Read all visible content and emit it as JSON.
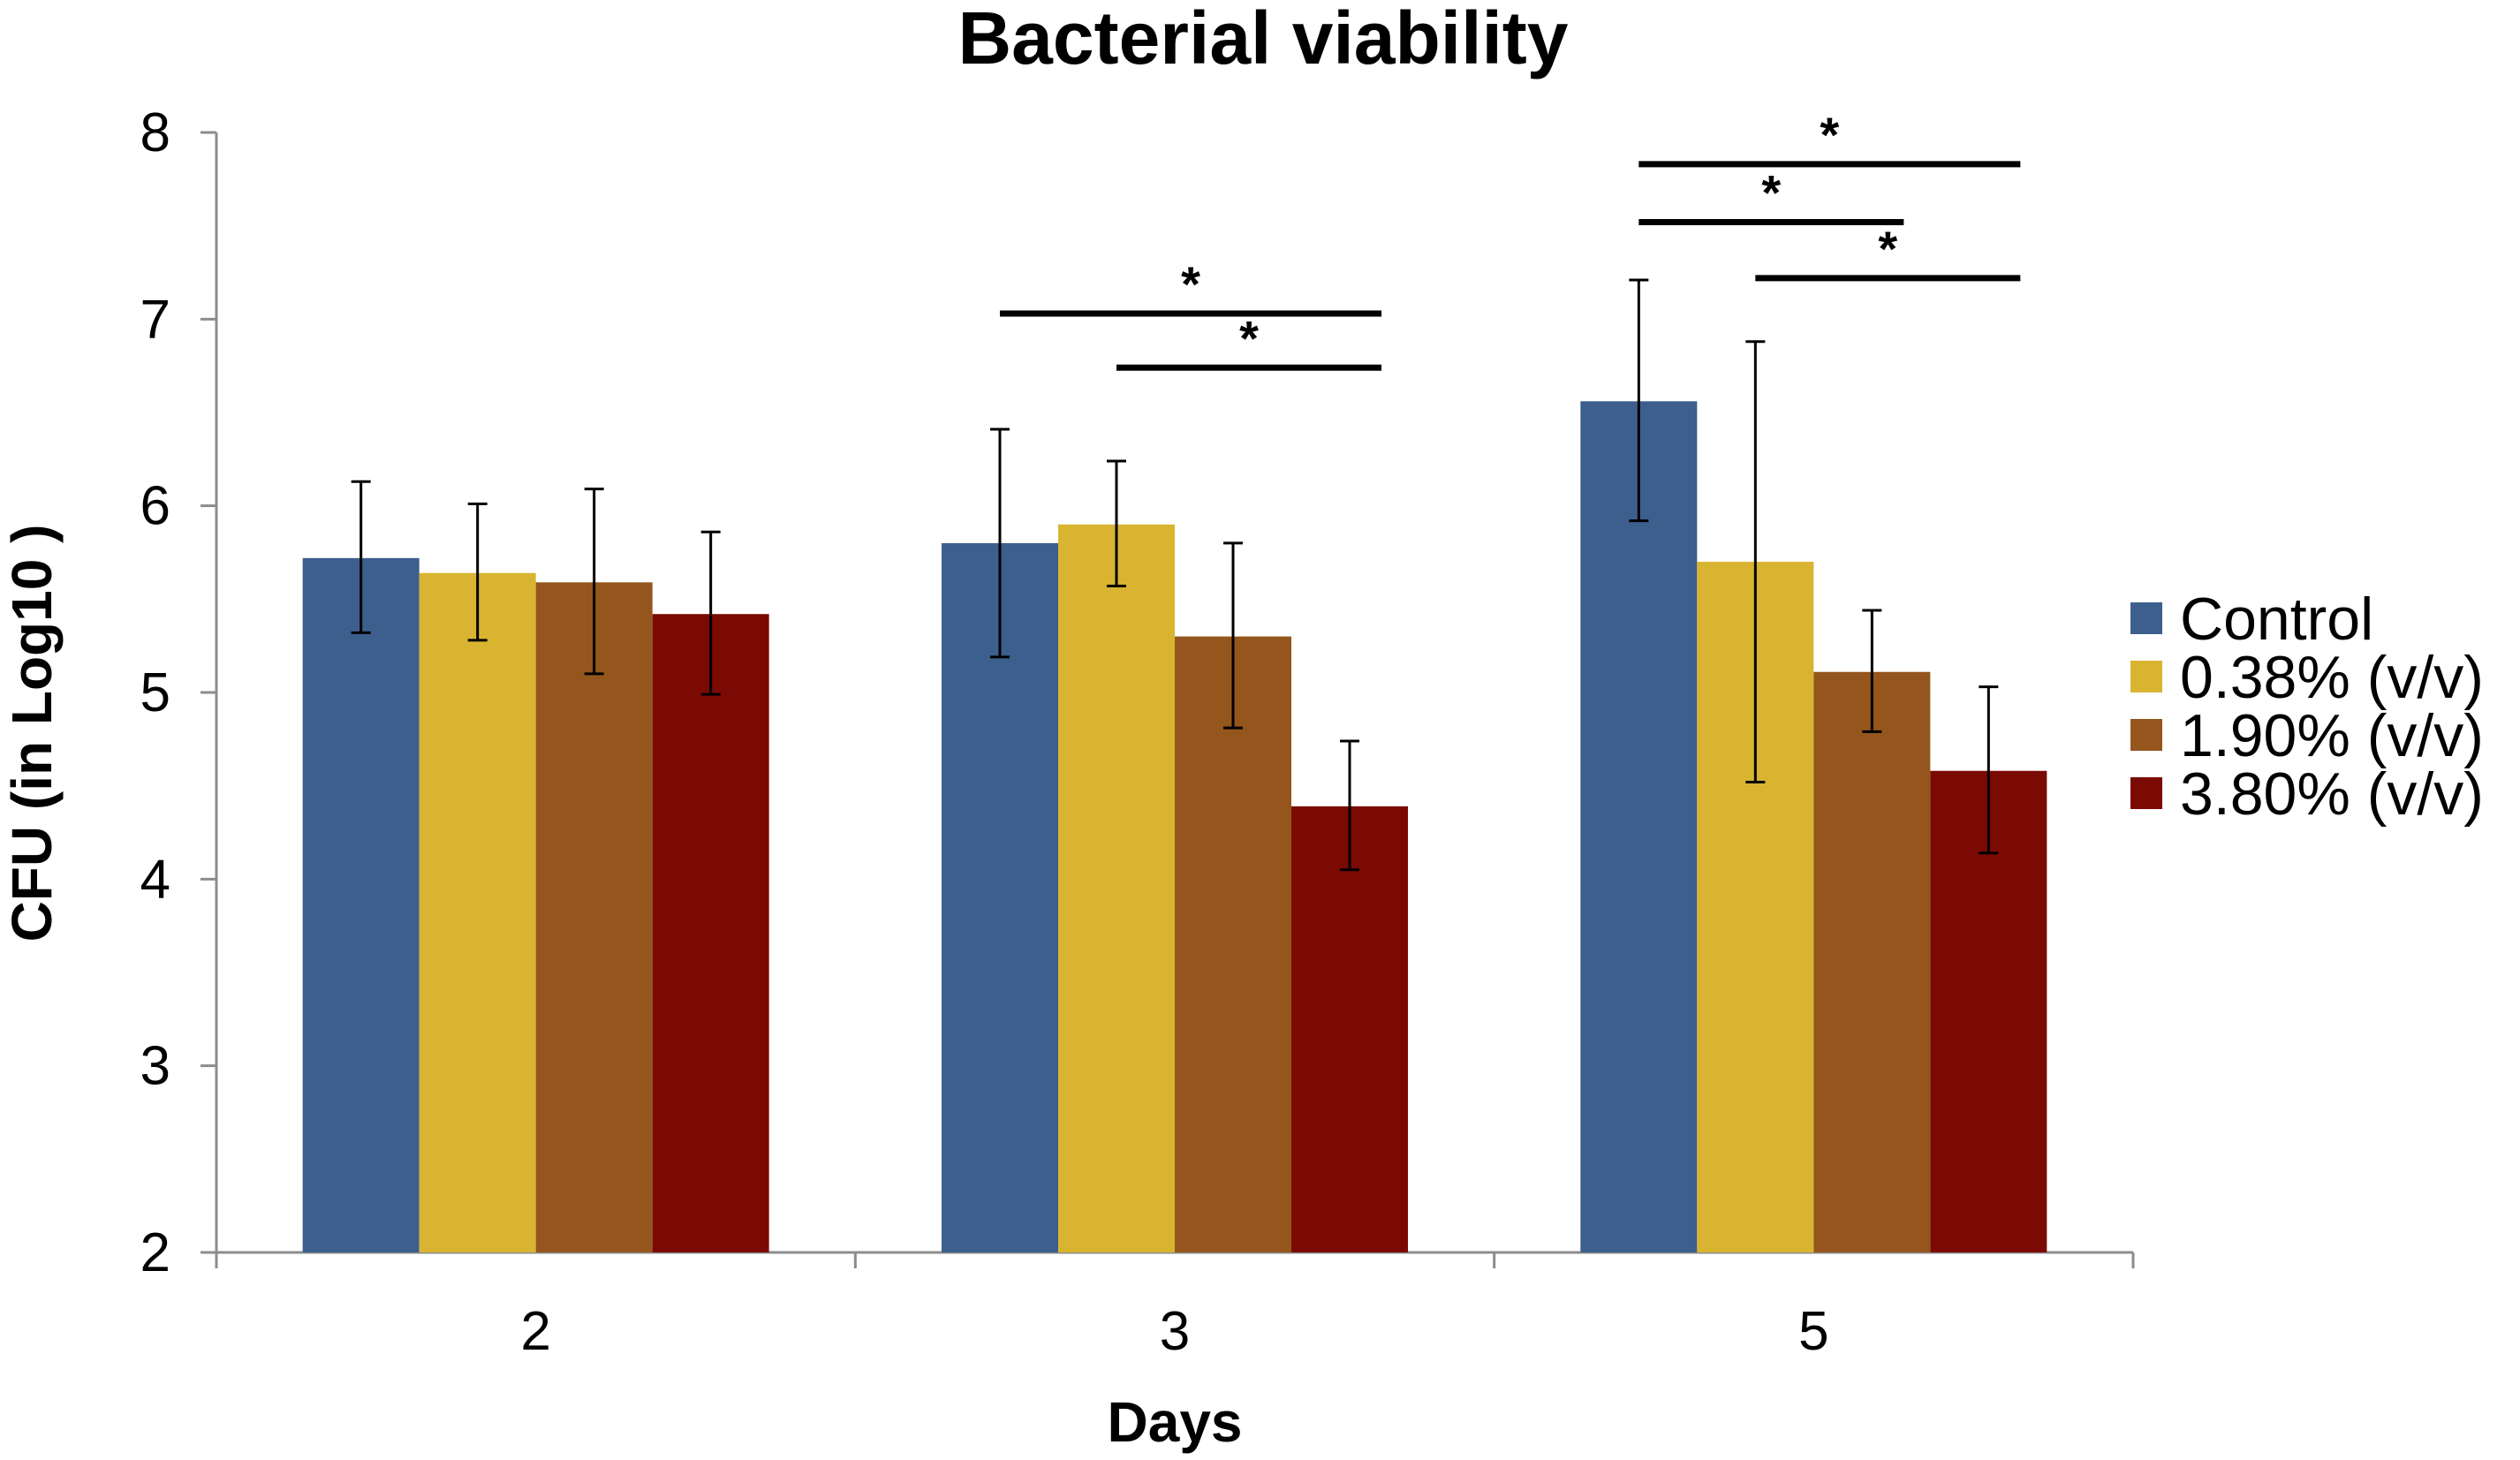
{
  "chart_data": {
    "type": "bar",
    "title": "Bacterial viability",
    "xlabel": "Days",
    "ylabel": "CFU (in Log10 )",
    "ylim": [
      2,
      8
    ],
    "yticks": [
      "2",
      "3",
      "4",
      "5",
      "6",
      "7",
      "8"
    ],
    "categories": [
      "2",
      "3",
      "5"
    ],
    "series": [
      {
        "name": "Control",
        "color": "#3d5f8e",
        "values": [
          5.72,
          5.8,
          6.56
        ],
        "err_low": [
          5.32,
          5.19,
          5.92
        ],
        "err_high": [
          6.13,
          6.41,
          7.21
        ]
      },
      {
        "name": "0.38% (v/v)",
        "color": "#d9b431",
        "values": [
          5.64,
          5.9,
          5.7
        ],
        "err_low": [
          5.28,
          5.57,
          4.52
        ],
        "err_high": [
          6.01,
          6.24,
          6.88
        ]
      },
      {
        "name": "1.90% (v/v)",
        "color": "#94561c",
        "values": [
          5.59,
          5.3,
          5.11
        ],
        "err_low": [
          5.1,
          4.81,
          4.79
        ],
        "err_high": [
          6.09,
          5.8,
          5.44
        ]
      },
      {
        "name": "3.80% (v/v)",
        "color": "#7b0a04",
        "values": [
          5.42,
          4.39,
          4.58
        ],
        "err_low": [
          4.99,
          4.05,
          4.14
        ],
        "err_high": [
          5.86,
          4.74,
          5.03
        ]
      }
    ],
    "significance": [
      {
        "category": 1,
        "from_series": 0,
        "to_series": 3,
        "level": 7.03,
        "label": "*"
      },
      {
        "category": 1,
        "from_series": 1,
        "to_series": 3,
        "level": 6.74,
        "label": "*"
      },
      {
        "category": 2,
        "from_series": 0,
        "to_series": 3,
        "level": 7.83,
        "label": "*"
      },
      {
        "category": 2,
        "from_series": 0,
        "to_series": 2,
        "level": 7.52,
        "label": "*"
      },
      {
        "category": 2,
        "from_series": 1,
        "to_series": 3,
        "level": 7.22,
        "label": "*"
      }
    ],
    "legend_position": "right"
  }
}
